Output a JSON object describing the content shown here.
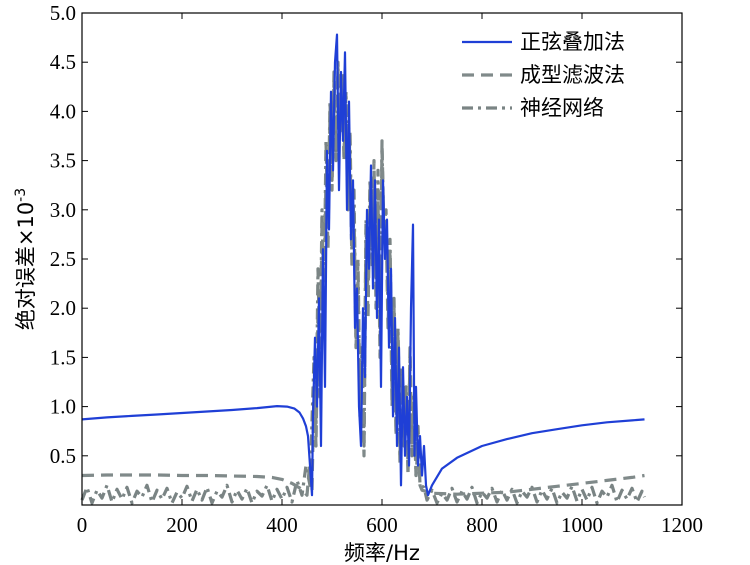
{
  "chart_data": {
    "type": "line",
    "xlabel": "频率/Hz",
    "ylabel": "绝对误差×10",
    "ylabel_exponent": "-3",
    "xlim": [
      0,
      1200
    ],
    "ylim": [
      0,
      5.0
    ],
    "x_ticks": [
      0,
      200,
      400,
      600,
      800,
      1000,
      1200
    ],
    "y_ticks": [
      0.5,
      1.0,
      1.5,
      2.0,
      2.5,
      3.0,
      3.5,
      4.0,
      4.5,
      5.0
    ],
    "y_tick_labels": [
      "0.5",
      "1.0",
      "1.5",
      "2.0",
      "2.5",
      "3.0",
      "3.5",
      "4.0",
      "4.5",
      "5.0"
    ],
    "grid": false,
    "legend_position": "top-right",
    "series": [
      {
        "name": "正弦叠加法",
        "color": "#1f3fd6",
        "style": "solid",
        "points": [
          [
            0,
            0.87
          ],
          [
            50,
            0.89
          ],
          [
            100,
            0.905
          ],
          [
            150,
            0.92
          ],
          [
            200,
            0.935
          ],
          [
            250,
            0.95
          ],
          [
            300,
            0.965
          ],
          [
            350,
            0.985
          ],
          [
            390,
            1.005
          ],
          [
            410,
            1.0
          ],
          [
            425,
            0.98
          ],
          [
            435,
            0.94
          ],
          [
            442,
            0.88
          ],
          [
            448,
            0.8
          ],
          [
            452,
            0.7
          ],
          [
            456,
            0.4
          ],
          [
            460,
            0.1
          ],
          [
            462,
            0.9
          ],
          [
            466,
            1.7
          ],
          [
            470,
            1.0
          ],
          [
            474,
            2.1
          ],
          [
            478,
            0.6
          ],
          [
            482,
            2.6
          ],
          [
            486,
            1.2
          ],
          [
            490,
            3.6
          ],
          [
            494,
            2.8
          ],
          [
            498,
            4.2
          ],
          [
            502,
            3.4
          ],
          [
            506,
            4.5
          ],
          [
            510,
            4.78
          ],
          [
            514,
            3.2
          ],
          [
            518,
            4.4
          ],
          [
            522,
            3.7
          ],
          [
            526,
            4.6
          ],
          [
            530,
            3.0
          ],
          [
            534,
            4.1
          ],
          [
            538,
            2.7
          ],
          [
            542,
            3.3
          ],
          [
            546,
            1.8
          ],
          [
            550,
            2.2
          ],
          [
            554,
            1.0
          ],
          [
            558,
            0.6
          ],
          [
            562,
            2.0
          ],
          [
            566,
            1.3
          ],
          [
            570,
            3.0
          ],
          [
            574,
            2.4
          ],
          [
            578,
            3.45
          ],
          [
            582,
            2.2
          ],
          [
            586,
            3.3
          ],
          [
            590,
            1.9
          ],
          [
            594,
            2.9
          ],
          [
            598,
            1.2
          ],
          [
            602,
            3.3
          ],
          [
            606,
            2.5
          ],
          [
            610,
            2.9
          ],
          [
            614,
            1.6
          ],
          [
            618,
            2.4
          ],
          [
            622,
            0.9
          ],
          [
            626,
            1.9
          ],
          [
            630,
            0.6
          ],
          [
            634,
            1.6
          ],
          [
            638,
            0.2
          ],
          [
            642,
            1.4
          ],
          [
            646,
            0.5
          ],
          [
            650,
            1.1
          ],
          [
            654,
            0.4
          ],
          [
            658,
            2.0
          ],
          [
            662,
            2.85
          ],
          [
            665,
            0.5
          ],
          [
            668,
            1.2
          ],
          [
            672,
            0.4
          ],
          [
            676,
            0.7
          ],
          [
            680,
            0.3
          ],
          [
            684,
            0.6
          ],
          [
            688,
            0.2
          ],
          [
            692,
            0.1
          ],
          [
            700,
            0.2
          ],
          [
            720,
            0.37
          ],
          [
            750,
            0.48
          ],
          [
            800,
            0.6
          ],
          [
            850,
            0.67
          ],
          [
            900,
            0.73
          ],
          [
            950,
            0.77
          ],
          [
            1000,
            0.81
          ],
          [
            1050,
            0.84
          ],
          [
            1100,
            0.86
          ],
          [
            1125,
            0.87
          ]
        ]
      },
      {
        "name": "成型滤波法",
        "color": "#808a8a",
        "style": "dashed",
        "points": [
          [
            0,
            0.3
          ],
          [
            50,
            0.305
          ],
          [
            100,
            0.305
          ],
          [
            150,
            0.305
          ],
          [
            200,
            0.3
          ],
          [
            250,
            0.3
          ],
          [
            300,
            0.295
          ],
          [
            350,
            0.29
          ],
          [
            380,
            0.28
          ],
          [
            400,
            0.26
          ],
          [
            420,
            0.22
          ],
          [
            440,
            0.16
          ],
          [
            450,
            0.1
          ],
          [
            455,
            0.4
          ],
          [
            460,
            0.15
          ],
          [
            464,
            1.2
          ],
          [
            468,
            0.6
          ],
          [
            472,
            2.0
          ],
          [
            476,
            1.1
          ],
          [
            480,
            2.9
          ],
          [
            484,
            1.8
          ],
          [
            488,
            3.4
          ],
          [
            492,
            2.6
          ],
          [
            496,
            4.0
          ],
          [
            500,
            3.2
          ],
          [
            504,
            4.4
          ],
          [
            508,
            3.5
          ],
          [
            512,
            4.5
          ],
          [
            516,
            3.8
          ],
          [
            520,
            4.3
          ],
          [
            524,
            3.6
          ],
          [
            528,
            4.1
          ],
          [
            532,
            3.0
          ],
          [
            536,
            3.6
          ],
          [
            540,
            2.4
          ],
          [
            544,
            3.0
          ],
          [
            548,
            1.6
          ],
          [
            552,
            2.3
          ],
          [
            556,
            0.9
          ],
          [
            560,
            1.4
          ],
          [
            564,
            0.5
          ],
          [
            568,
            2.8
          ],
          [
            572,
            1.9
          ],
          [
            576,
            3.2
          ],
          [
            580,
            2.4
          ],
          [
            584,
            3.5
          ],
          [
            588,
            2.0
          ],
          [
            592,
            3.1
          ],
          [
            596,
            1.5
          ],
          [
            600,
            3.7
          ],
          [
            604,
            2.7
          ],
          [
            608,
            2.9
          ],
          [
            612,
            1.8
          ],
          [
            616,
            2.6
          ],
          [
            620,
            1.0
          ],
          [
            624,
            2.0
          ],
          [
            628,
            0.7
          ],
          [
            632,
            1.7
          ],
          [
            636,
            0.4
          ],
          [
            640,
            1.3
          ],
          [
            644,
            0.6
          ],
          [
            648,
            1.1
          ],
          [
            652,
            0.3
          ],
          [
            656,
            1.6
          ],
          [
            660,
            0.6
          ],
          [
            664,
            1.0
          ],
          [
            668,
            0.3
          ],
          [
            672,
            0.6
          ],
          [
            676,
            0.2
          ],
          [
            680,
            0.15
          ],
          [
            700,
            0.12
          ],
          [
            750,
            0.11
          ],
          [
            800,
            0.12
          ],
          [
            850,
            0.13
          ],
          [
            900,
            0.16
          ],
          [
            950,
            0.19
          ],
          [
            1000,
            0.22
          ],
          [
            1050,
            0.25
          ],
          [
            1100,
            0.28
          ],
          [
            1125,
            0.3
          ]
        ]
      },
      {
        "name": "神经网络",
        "color": "#7a8484",
        "style": "dash-dot",
        "points": [
          [
            0,
            0.05
          ],
          [
            10,
            0.18
          ],
          [
            20,
            0.02
          ],
          [
            30,
            0.15
          ],
          [
            40,
            0.07
          ],
          [
            50,
            0.2
          ],
          [
            60,
            0.03
          ],
          [
            70,
            0.16
          ],
          [
            80,
            0.06
          ],
          [
            90,
            0.18
          ],
          [
            100,
            0.02
          ],
          [
            110,
            0.14
          ],
          [
            120,
            0.08
          ],
          [
            130,
            0.2
          ],
          [
            140,
            0.03
          ],
          [
            150,
            0.15
          ],
          [
            160,
            0.06
          ],
          [
            170,
            0.17
          ],
          [
            180,
            0.02
          ],
          [
            190,
            0.13
          ],
          [
            200,
            0.07
          ],
          [
            210,
            0.19
          ],
          [
            220,
            0.04
          ],
          [
            230,
            0.16
          ],
          [
            240,
            0.05
          ],
          [
            250,
            0.18
          ],
          [
            260,
            0.02
          ],
          [
            270,
            0.14
          ],
          [
            280,
            0.08
          ],
          [
            290,
            0.2
          ],
          [
            300,
            0.03
          ],
          [
            310,
            0.15
          ],
          [
            320,
            0.06
          ],
          [
            330,
            0.17
          ],
          [
            340,
            0.02
          ],
          [
            350,
            0.14
          ],
          [
            360,
            0.09
          ],
          [
            370,
            0.2
          ],
          [
            380,
            0.04
          ],
          [
            390,
            0.16
          ],
          [
            400,
            0.06
          ],
          [
            410,
            0.18
          ],
          [
            420,
            0.03
          ],
          [
            430,
            0.25
          ],
          [
            440,
            0.1
          ],
          [
            448,
            0.4
          ],
          [
            456,
            0.2
          ],
          [
            464,
            1.5
          ],
          [
            468,
            0.8
          ],
          [
            472,
            2.4
          ],
          [
            476,
            1.4
          ],
          [
            480,
            3.0
          ],
          [
            484,
            2.0
          ],
          [
            488,
            3.7
          ],
          [
            492,
            2.8
          ],
          [
            496,
            4.1
          ],
          [
            500,
            3.3
          ],
          [
            504,
            4.3
          ],
          [
            508,
            3.6
          ],
          [
            512,
            4.45
          ],
          [
            516,
            3.9
          ],
          [
            520,
            4.4
          ],
          [
            524,
            3.5
          ],
          [
            528,
            4.2
          ],
          [
            532,
            3.1
          ],
          [
            536,
            3.8
          ],
          [
            540,
            2.5
          ],
          [
            544,
            3.2
          ],
          [
            548,
            1.7
          ],
          [
            552,
            2.5
          ],
          [
            556,
            1.0
          ],
          [
            560,
            1.6
          ],
          [
            564,
            0.6
          ],
          [
            568,
            2.9
          ],
          [
            572,
            2.1
          ],
          [
            576,
            3.3
          ],
          [
            580,
            2.6
          ],
          [
            584,
            3.2
          ],
          [
            588,
            2.2
          ],
          [
            592,
            3.4
          ],
          [
            596,
            1.8
          ],
          [
            600,
            3.6
          ],
          [
            604,
            2.8
          ],
          [
            608,
            3.0
          ],
          [
            612,
            2.0
          ],
          [
            616,
            2.7
          ],
          [
            620,
            1.2
          ],
          [
            624,
            2.1
          ],
          [
            628,
            0.8
          ],
          [
            632,
            1.8
          ],
          [
            636,
            0.5
          ],
          [
            640,
            1.4
          ],
          [
            644,
            0.7
          ],
          [
            648,
            1.2
          ],
          [
            652,
            0.4
          ],
          [
            656,
            1.5
          ],
          [
            660,
            0.5
          ],
          [
            664,
            1.1
          ],
          [
            668,
            0.3
          ],
          [
            672,
            0.8
          ],
          [
            676,
            0.2
          ],
          [
            684,
            0.18
          ],
          [
            690,
            0.05
          ],
          [
            700,
            0.15
          ],
          [
            710,
            0.02
          ],
          [
            720,
            0.12
          ],
          [
            730,
            0.05
          ],
          [
            740,
            0.17
          ],
          [
            750,
            0.03
          ],
          [
            760,
            0.14
          ],
          [
            770,
            0.06
          ],
          [
            780,
            0.18
          ],
          [
            790,
            0.02
          ],
          [
            800,
            0.13
          ],
          [
            810,
            0.07
          ],
          [
            820,
            0.17
          ],
          [
            830,
            0.03
          ],
          [
            840,
            0.15
          ],
          [
            850,
            0.05
          ],
          [
            860,
            0.16
          ],
          [
            870,
            0.02
          ],
          [
            880,
            0.14
          ],
          [
            890,
            0.08
          ],
          [
            900,
            0.18
          ],
          [
            910,
            0.03
          ],
          [
            920,
            0.15
          ],
          [
            930,
            0.06
          ],
          [
            940,
            0.17
          ],
          [
            950,
            0.02
          ],
          [
            960,
            0.13
          ],
          [
            970,
            0.07
          ],
          [
            980,
            0.19
          ],
          [
            990,
            0.04
          ],
          [
            1000,
            0.16
          ],
          [
            1010,
            0.05
          ],
          [
            1020,
            0.18
          ],
          [
            1030,
            0.02
          ],
          [
            1040,
            0.14
          ],
          [
            1050,
            0.08
          ],
          [
            1060,
            0.2
          ],
          [
            1070,
            0.03
          ],
          [
            1080,
            0.15
          ],
          [
            1090,
            0.06
          ],
          [
            1100,
            0.17
          ],
          [
            1110,
            0.03
          ],
          [
            1120,
            0.14
          ],
          [
            1125,
            0.08
          ]
        ]
      }
    ]
  }
}
